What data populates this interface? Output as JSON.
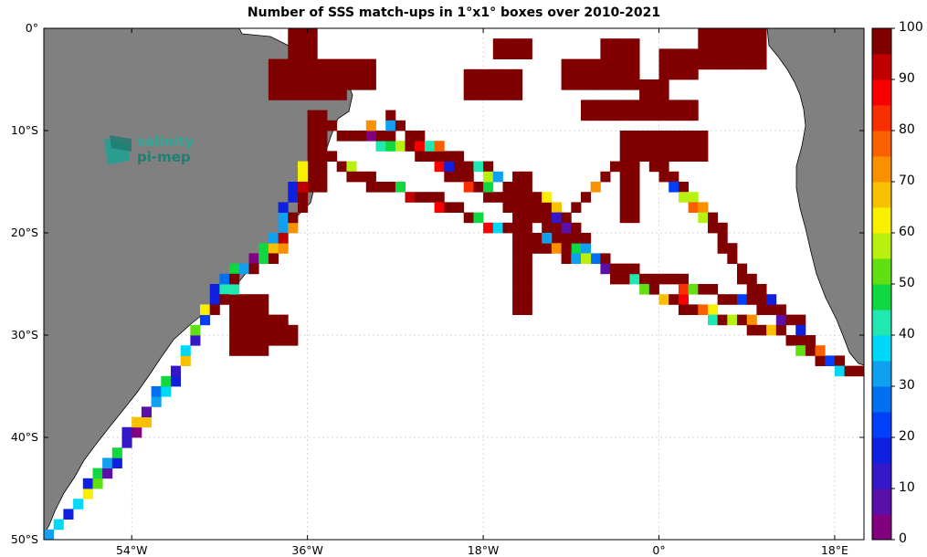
{
  "title": "Number of SSS match-ups in 1°x1° boxes over 2010-2021",
  "logo": {
    "line1": "salinity",
    "line2": "pi-mep"
  },
  "lat_labels": [
    "0°",
    "10°S",
    "20°S",
    "30°S",
    "40°S",
    "50°S"
  ],
  "lon_labels": [
    "54°W",
    "36°W",
    "18°W",
    "0°",
    "18°E"
  ],
  "colorbar": {
    "min": 0,
    "max": 100,
    "ticks": [
      "100",
      "90",
      "80",
      "70",
      "60",
      "50",
      "40",
      "30",
      "20",
      "10",
      "0"
    ],
    "colors": [
      "#800080",
      "#5a10a8",
      "#3418c8",
      "#1020e0",
      "#0040f8",
      "#0070f0",
      "#10a0f0",
      "#00d8f8",
      "#20e8b0",
      "#10d840",
      "#60e010",
      "#b8f010",
      "#f8f000",
      "#f8c000",
      "#f89000",
      "#f86000",
      "#f83000",
      "#f80000",
      "#c00000",
      "#800000"
    ]
  },
  "map_data": {
    "extent": {
      "lon": [
        -63,
        21
      ],
      "lat": [
        -50,
        0
      ]
    },
    "land_color": "#808080",
    "ocean_color": "#ffffff",
    "tracks": [
      {
        "name": "south-american-coast",
        "pts": [
          [
            -62.5,
            -49.5
          ],
          [
            -59,
            -46
          ],
          [
            -55,
            -41
          ],
          [
            -52,
            -37
          ],
          [
            -49,
            -33
          ],
          [
            -46,
            -27
          ],
          [
            -44,
            -24
          ],
          [
            -39.5,
            -21.5
          ],
          [
            -38,
            -17
          ],
          [
            -36,
            -13
          ]
        ]
      },
      {
        "name": "ship-a",
        "pts": [
          [
            -35,
            -9.5
          ],
          [
            -25,
            -12
          ],
          [
            -20,
            -15
          ],
          [
            -12,
            -19
          ],
          [
            -4.5,
            -23.5
          ],
          [
            1,
            -26.5
          ],
          [
            7,
            -28.5
          ],
          [
            12,
            -29.5
          ],
          [
            17,
            -32.5
          ]
        ]
      },
      {
        "name": "ship-b",
        "pts": [
          [
            -35,
            -12
          ],
          [
            -30,
            -15
          ],
          [
            -23,
            -17
          ],
          [
            -15,
            -20
          ],
          [
            -10,
            -22
          ],
          [
            -3,
            -24
          ],
          [
            2,
            -25
          ],
          [
            10,
            -27
          ],
          [
            14,
            -29
          ],
          [
            18,
            -33
          ],
          [
            20,
            -34
          ]
        ]
      },
      {
        "name": "ship-c",
        "pts": [
          [
            -30,
            -10
          ],
          [
            -22,
            -13
          ],
          [
            -18,
            -16
          ],
          [
            -11,
            -18
          ],
          [
            -8,
            -21
          ]
        ]
      },
      {
        "name": "ship-d",
        "pts": [
          [
            -28,
            -9
          ],
          [
            -18,
            -14
          ],
          [
            -12,
            -17
          ],
          [
            -9,
            -21
          ],
          [
            -6,
            -23
          ],
          [
            -4,
            -24.5
          ]
        ]
      },
      {
        "name": "ship-e",
        "pts": [
          [
            -5,
            -14
          ],
          [
            -8,
            -17
          ],
          [
            -10,
            -19
          ],
          [
            -12,
            -22
          ]
        ]
      },
      {
        "name": "ship-f",
        "pts": [
          [
            -1,
            -12
          ],
          [
            3,
            -17
          ],
          [
            6,
            -20
          ],
          [
            9,
            -25
          ],
          [
            12,
            -28
          ]
        ]
      },
      {
        "name": "ship-g",
        "pts": [
          [
            -46,
            -28
          ],
          [
            -43,
            -24
          ],
          [
            -39,
            -22
          ],
          [
            -37,
            -18
          ],
          [
            -37,
            -14
          ]
        ]
      }
    ],
    "high_blocks": [
      [
        -44,
        -26,
        4,
        3
      ],
      [
        -44,
        -29,
        4,
        3
      ],
      [
        -40,
        -28,
        2,
        1
      ],
      [
        -40,
        -29,
        3,
        2
      ],
      [
        -36,
        -8,
        2,
        8
      ],
      [
        -32,
        -3,
        3,
        3
      ],
      [
        -40,
        -3,
        8,
        4
      ],
      [
        -38,
        0,
        3,
        3
      ],
      [
        -15,
        -14,
        2,
        14
      ],
      [
        -10,
        -3,
        8,
        3
      ],
      [
        -8,
        -7,
        12,
        2
      ],
      [
        -3,
        -10,
        8,
        3
      ],
      [
        -20,
        -4,
        6,
        3
      ],
      [
        -17,
        -1,
        4,
        2
      ],
      [
        0,
        -2,
        4,
        3
      ],
      [
        4,
        0,
        7,
        4
      ],
      [
        -6,
        -1,
        4,
        3
      ],
      [
        -2,
        -5,
        3,
        3
      ],
      [
        -4,
        -10,
        2,
        9
      ]
    ]
  }
}
